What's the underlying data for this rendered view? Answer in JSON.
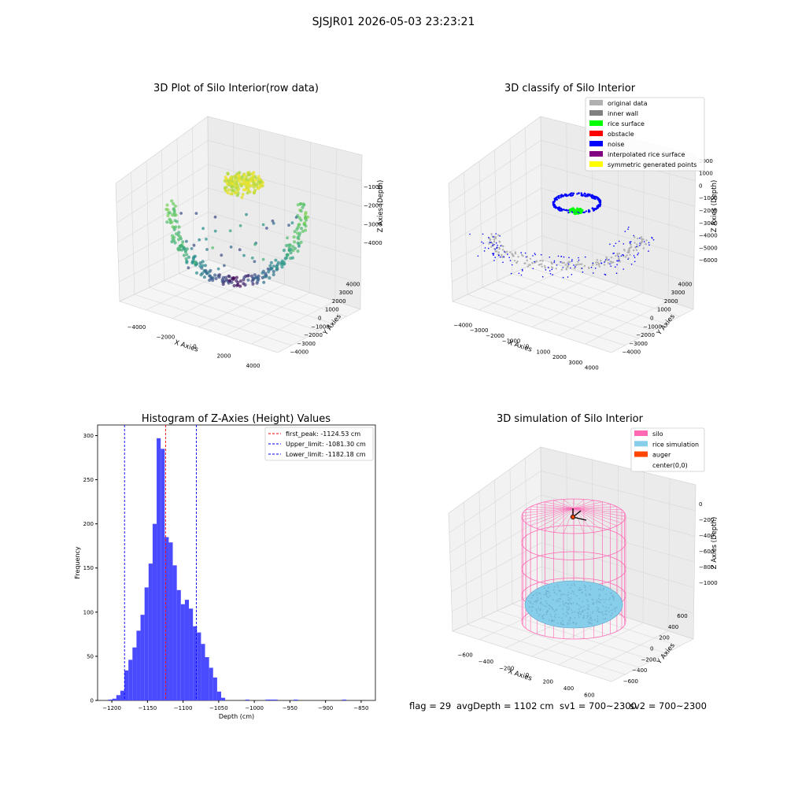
{
  "suptitle": "SJSJR01 2026-05-03 23:23:21",
  "footer": {
    "flag": "flag = 29",
    "avg_depth": "avgDepth = 1102 cm",
    "sv1": "sv1 = 700~2300",
    "sv2": "sv2 = 700~2300"
  },
  "colors": {
    "hist_bar": "#4a4aff",
    "peak_line": "#ff0000",
    "limit_line": "#0000ff",
    "silo": "#ff69b4",
    "rice": "#87ceeb",
    "auger": "#ff4500"
  },
  "chart_data": [
    {
      "type": "scatter3d",
      "title": "3D Plot of Silo Interior(row data)",
      "xlabel": "X Axies",
      "ylabel": "Y Axies",
      "zlabel": "Z Axies (Depth)",
      "x_ticks": [
        "−4000",
        "−2000",
        "0",
        "2000",
        "4000"
      ],
      "y_ticks": [
        "4000",
        "3000",
        "2000",
        "1000",
        "0",
        "−1000",
        "−2000",
        "−3000",
        "−4000"
      ],
      "z_ticks": [
        "−1000",
        "−2000",
        "−3000",
        "−4000"
      ],
      "colormap": "viridis"
    },
    {
      "type": "scatter3d",
      "title": "3D classify of Silo Interior",
      "xlabel": "X Axies",
      "ylabel": "Y Axies",
      "zlabel": "Z Axies (Depth)",
      "x_ticks": [
        "−4000",
        "−3000",
        "−2000",
        "−1000",
        "0",
        "1000",
        "2000",
        "3000",
        "4000"
      ],
      "y_ticks": [
        "4000",
        "3000",
        "2000",
        "1000",
        "0",
        "−1000",
        "−2000",
        "−3000",
        "−4000"
      ],
      "z_ticks": [
        "2000",
        "1000",
        "0",
        "−1000",
        "−2000",
        "−3000",
        "−4000",
        "−5000",
        "−6000"
      ],
      "legend": [
        {
          "label": "original data",
          "color": "#b0b0b0"
        },
        {
          "label": "inner wall",
          "color": "#808080"
        },
        {
          "label": "rice surface",
          "color": "#00ff00"
        },
        {
          "label": "obstacle",
          "color": "#ff0000"
        },
        {
          "label": "noise",
          "color": "#0000ff"
        },
        {
          "label": "interpolated rice surface",
          "color": "#800080"
        },
        {
          "label": "symmetric generated points",
          "color": "#ffff00"
        }
      ]
    },
    {
      "type": "bar",
      "title": "Histogram of Z-Axies (Height) Values",
      "xlabel": "Depth (cm)",
      "ylabel": "Frequency",
      "xlim": [
        -1220,
        -830
      ],
      "ylim": [
        0,
        312
      ],
      "x_ticks": [
        -1200,
        -1150,
        -1100,
        -1050,
        -1000,
        -950,
        -900,
        -850
      ],
      "x_tick_labels": [
        "−1200",
        "−1150",
        "−1100",
        "−1050",
        "−1000",
        "−950",
        "−900",
        "−850"
      ],
      "y_ticks": [
        0,
        50,
        100,
        150,
        200,
        250,
        300
      ],
      "bin_start": -1205,
      "bin_width": 5.66,
      "values": [
        1,
        2,
        6,
        11,
        34,
        46,
        60,
        79,
        97,
        128,
        155,
        200,
        297,
        285,
        185,
        179,
        153,
        125,
        109,
        114,
        104,
        84,
        77,
        64,
        49,
        37,
        26,
        10,
        3,
        0,
        0,
        0,
        0,
        0,
        1,
        0,
        0,
        0,
        0,
        1,
        1,
        1,
        0,
        0,
        0,
        0,
        1,
        0,
        0,
        0,
        0,
        0,
        0,
        0,
        0,
        0,
        0,
        0,
        1
      ],
      "vlines": [
        {
          "x": -1124.53,
          "label": "first_peak: -1124.53 cm",
          "color": "#ff0000"
        },
        {
          "x": -1081.3,
          "label": "Upper_limit: -1081.30 cm",
          "color": "#0000ff"
        },
        {
          "x": -1182.18,
          "label": "Lower_limit: -1182.18 cm",
          "color": "#0000ff"
        }
      ]
    },
    {
      "type": "surface3d",
      "title": "3D simulation of Silo Interior",
      "xlabel": "X Axies",
      "ylabel": "Y Axies",
      "zlabel": "Z Axies (Depth)",
      "x_ticks": [
        "−600",
        "−400",
        "−200",
        "0",
        "200",
        "400",
        "600"
      ],
      "y_ticks": [
        "600",
        "400",
        "200",
        "0",
        "−200",
        "−400",
        "−600"
      ],
      "z_ticks": [
        "0",
        "−200",
        "−400",
        "−600",
        "−800",
        "−1000"
      ],
      "legend": [
        {
          "label": "silo",
          "color": "#ff69b4"
        },
        {
          "label": "rice simulation",
          "color": "#87ceeb"
        },
        {
          "label": "auger",
          "color": "#ff4500"
        },
        {
          "label": "center(0,0)",
          "color": ""
        }
      ]
    }
  ]
}
